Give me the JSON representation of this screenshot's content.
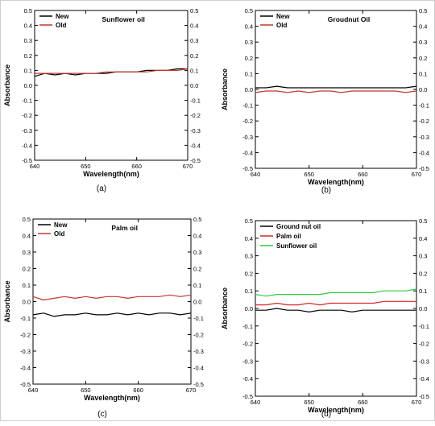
{
  "chart_data": [
    {
      "type": "line",
      "panel_label": "(a)",
      "title": "Sunflower oil",
      "xlabel": "Wavelength(nm)",
      "ylabel": "Absorbance",
      "xlim": [
        640,
        670
      ],
      "ylim": [
        -0.5,
        0.5
      ],
      "xticks": [
        "640",
        "650",
        "660",
        "670"
      ],
      "yticks": [
        "-0.5",
        "-0.4",
        "-0.3",
        "-0.2",
        "-0.1",
        "0.0",
        "0.1",
        "0.2",
        "0.3",
        "0.4",
        "0.5"
      ],
      "legend_position": "top-left",
      "series": [
        {
          "name": "New",
          "color": "#000000",
          "x": [
            640,
            642,
            644,
            646,
            648,
            650,
            652,
            654,
            656,
            658,
            660,
            662,
            664,
            666,
            668,
            670
          ],
          "values": [
            0.06,
            0.08,
            0.07,
            0.08,
            0.07,
            0.08,
            0.08,
            0.08,
            0.09,
            0.09,
            0.09,
            0.1,
            0.1,
            0.1,
            0.11,
            0.11
          ]
        },
        {
          "name": "Old",
          "color": "#c0392b",
          "x": [
            640,
            642,
            644,
            646,
            648,
            650,
            652,
            654,
            656,
            658,
            660,
            662,
            664,
            666,
            668,
            670
          ],
          "values": [
            0.08,
            0.08,
            0.08,
            0.08,
            0.08,
            0.08,
            0.08,
            0.09,
            0.09,
            0.09,
            0.09,
            0.09,
            0.1,
            0.1,
            0.1,
            0.11
          ]
        }
      ]
    },
    {
      "type": "line",
      "panel_label": "(b)",
      "title": "Groudnut Oil",
      "xlabel": "Wavelength(nm)",
      "ylabel": "Absorbance",
      "xlim": [
        640,
        670
      ],
      "ylim": [
        -0.5,
        0.5
      ],
      "xticks": [
        "640",
        "650",
        "660",
        "670"
      ],
      "yticks": [
        "-0.5",
        "-0.4",
        "-0.3",
        "-0.2",
        "-0.1",
        "0.0",
        "0.1",
        "0.2",
        "0.3",
        "0.4",
        "0.5"
      ],
      "legend_position": "top-left",
      "series": [
        {
          "name": "New",
          "color": "#000000",
          "x": [
            640,
            642,
            644,
            646,
            648,
            650,
            652,
            654,
            656,
            658,
            660,
            662,
            664,
            666,
            668,
            670
          ],
          "values": [
            0.01,
            0.01,
            0.02,
            0.01,
            0.01,
            0.01,
            0.01,
            0.01,
            0.01,
            0.01,
            0.01,
            0.01,
            0.01,
            0.01,
            0.01,
            0.02
          ]
        },
        {
          "name": "Old",
          "color": "#c0392b",
          "x": [
            640,
            642,
            644,
            646,
            648,
            650,
            652,
            654,
            656,
            658,
            660,
            662,
            664,
            666,
            668,
            670
          ],
          "values": [
            -0.02,
            -0.01,
            -0.01,
            -0.02,
            -0.01,
            -0.02,
            -0.01,
            -0.01,
            -0.02,
            -0.01,
            -0.01,
            -0.01,
            -0.01,
            -0.01,
            -0.02,
            -0.01
          ]
        }
      ]
    },
    {
      "type": "line",
      "panel_label": "(c)",
      "title": "Palm oil",
      "xlabel": "Wavelength(nm)",
      "ylabel": "Absorbance",
      "xlim": [
        640,
        670
      ],
      "ylim": [
        -0.5,
        0.5
      ],
      "xticks": [
        "640",
        "650",
        "660",
        "670"
      ],
      "yticks": [
        "-0.5",
        "-0.4",
        "-0.3",
        "-0.2",
        "-0.1",
        "0.0",
        "0.1",
        "0.2",
        "0.3",
        "0.4",
        "0.5"
      ],
      "legend_position": "top-left",
      "series": [
        {
          "name": "New",
          "color": "#000000",
          "x": [
            640,
            642,
            644,
            646,
            648,
            650,
            652,
            654,
            656,
            658,
            660,
            662,
            664,
            666,
            668,
            670
          ],
          "values": [
            -0.08,
            -0.07,
            -0.09,
            -0.08,
            -0.08,
            -0.07,
            -0.08,
            -0.08,
            -0.07,
            -0.08,
            -0.07,
            -0.08,
            -0.07,
            -0.07,
            -0.08,
            -0.07
          ]
        },
        {
          "name": "Old",
          "color": "#c0392b",
          "x": [
            640,
            642,
            644,
            646,
            648,
            650,
            652,
            654,
            656,
            658,
            660,
            662,
            664,
            666,
            668,
            670
          ],
          "values": [
            0.03,
            0.01,
            0.02,
            0.03,
            0.02,
            0.03,
            0.02,
            0.03,
            0.03,
            0.02,
            0.03,
            0.03,
            0.03,
            0.04,
            0.03,
            0.04
          ]
        }
      ]
    },
    {
      "type": "line",
      "panel_label": "(d)",
      "title": "",
      "xlabel": "Wavelength(nm)",
      "ylabel": "Absorbance",
      "xlim": [
        640,
        670
      ],
      "ylim": [
        -0.5,
        0.5
      ],
      "xticks": [
        "640",
        "650",
        "660",
        "670"
      ],
      "yticks": [
        "-0.5",
        "-0.4",
        "-0.3",
        "-0.2",
        "-0.1",
        "0.0",
        "0.1",
        "0.2",
        "0.3",
        "0.4",
        "0.5"
      ],
      "legend_position": "top-left",
      "series": [
        {
          "name": "Ground nut oil",
          "color": "#000000",
          "x": [
            640,
            642,
            644,
            646,
            648,
            650,
            652,
            654,
            656,
            658,
            660,
            662,
            664,
            666,
            668,
            670
          ],
          "values": [
            -0.01,
            -0.01,
            0.0,
            -0.01,
            -0.01,
            -0.02,
            -0.01,
            -0.01,
            -0.01,
            -0.02,
            -0.01,
            -0.01,
            -0.01,
            -0.01,
            -0.01,
            -0.01
          ]
        },
        {
          "name": "Palm oil",
          "color": "#d62728",
          "x": [
            640,
            642,
            644,
            646,
            648,
            650,
            652,
            654,
            656,
            658,
            660,
            662,
            664,
            666,
            668,
            670
          ],
          "values": [
            0.02,
            0.02,
            0.03,
            0.02,
            0.02,
            0.03,
            0.02,
            0.03,
            0.03,
            0.03,
            0.03,
            0.03,
            0.04,
            0.04,
            0.04,
            0.04
          ]
        },
        {
          "name": "Sunflower oil",
          "color": "#2ecc40",
          "x": [
            640,
            642,
            644,
            646,
            648,
            650,
            652,
            654,
            656,
            658,
            660,
            662,
            664,
            666,
            668,
            670
          ],
          "values": [
            0.08,
            0.07,
            0.08,
            0.08,
            0.08,
            0.08,
            0.08,
            0.09,
            0.09,
            0.09,
            0.09,
            0.09,
            0.1,
            0.1,
            0.1,
            0.11
          ]
        }
      ]
    }
  ]
}
